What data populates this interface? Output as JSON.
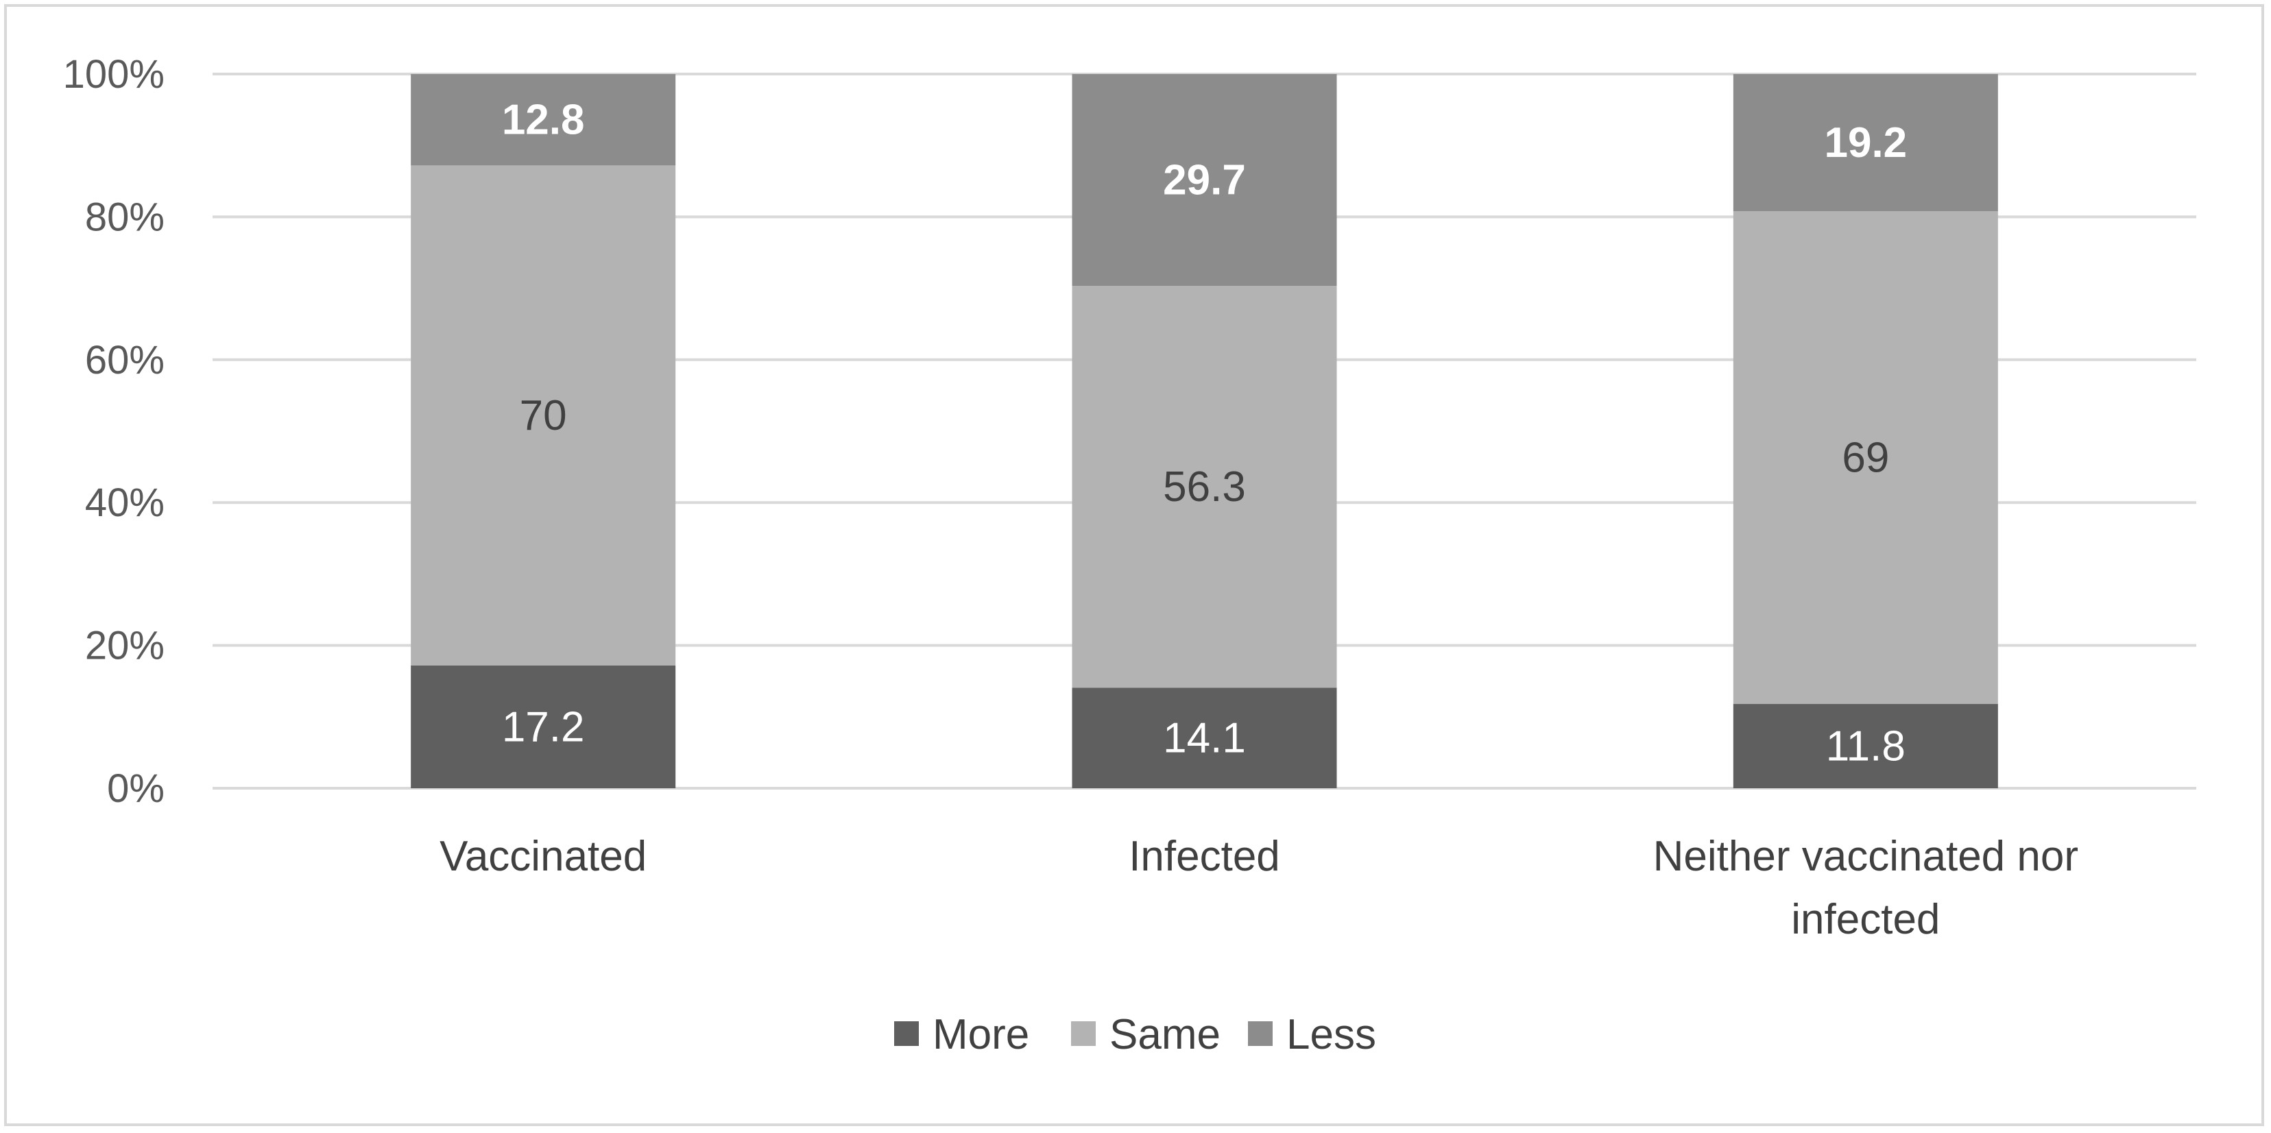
{
  "chart_data": {
    "type": "bar",
    "stacked": true,
    "percent_stacked": true,
    "categories": [
      [
        "Vaccinated"
      ],
      [
        "Infected"
      ],
      [
        "Neither vaccinated nor",
        "infected"
      ]
    ],
    "series": [
      {
        "name": "More",
        "values": [
          17.2,
          14.1,
          11.8
        ],
        "color": "#5f5f5f",
        "label_color": "#ffffff",
        "label_bold": false
      },
      {
        "name": "Same",
        "values": [
          70,
          56.3,
          69
        ],
        "color": "#b3b3b3",
        "label_color": "#404040",
        "label_bold": false
      },
      {
        "name": "Less",
        "values": [
          12.8,
          29.7,
          19.2
        ],
        "color": "#8c8c8c",
        "label_color": "#ffffff",
        "label_bold": true
      }
    ],
    "y_ticks": [
      "0%",
      "20%",
      "40%",
      "60%",
      "80%",
      "100%"
    ],
    "ylim": [
      0,
      100
    ],
    "grid": true,
    "gridline_color": "#d9d9d9",
    "legend_position": "bottom"
  }
}
